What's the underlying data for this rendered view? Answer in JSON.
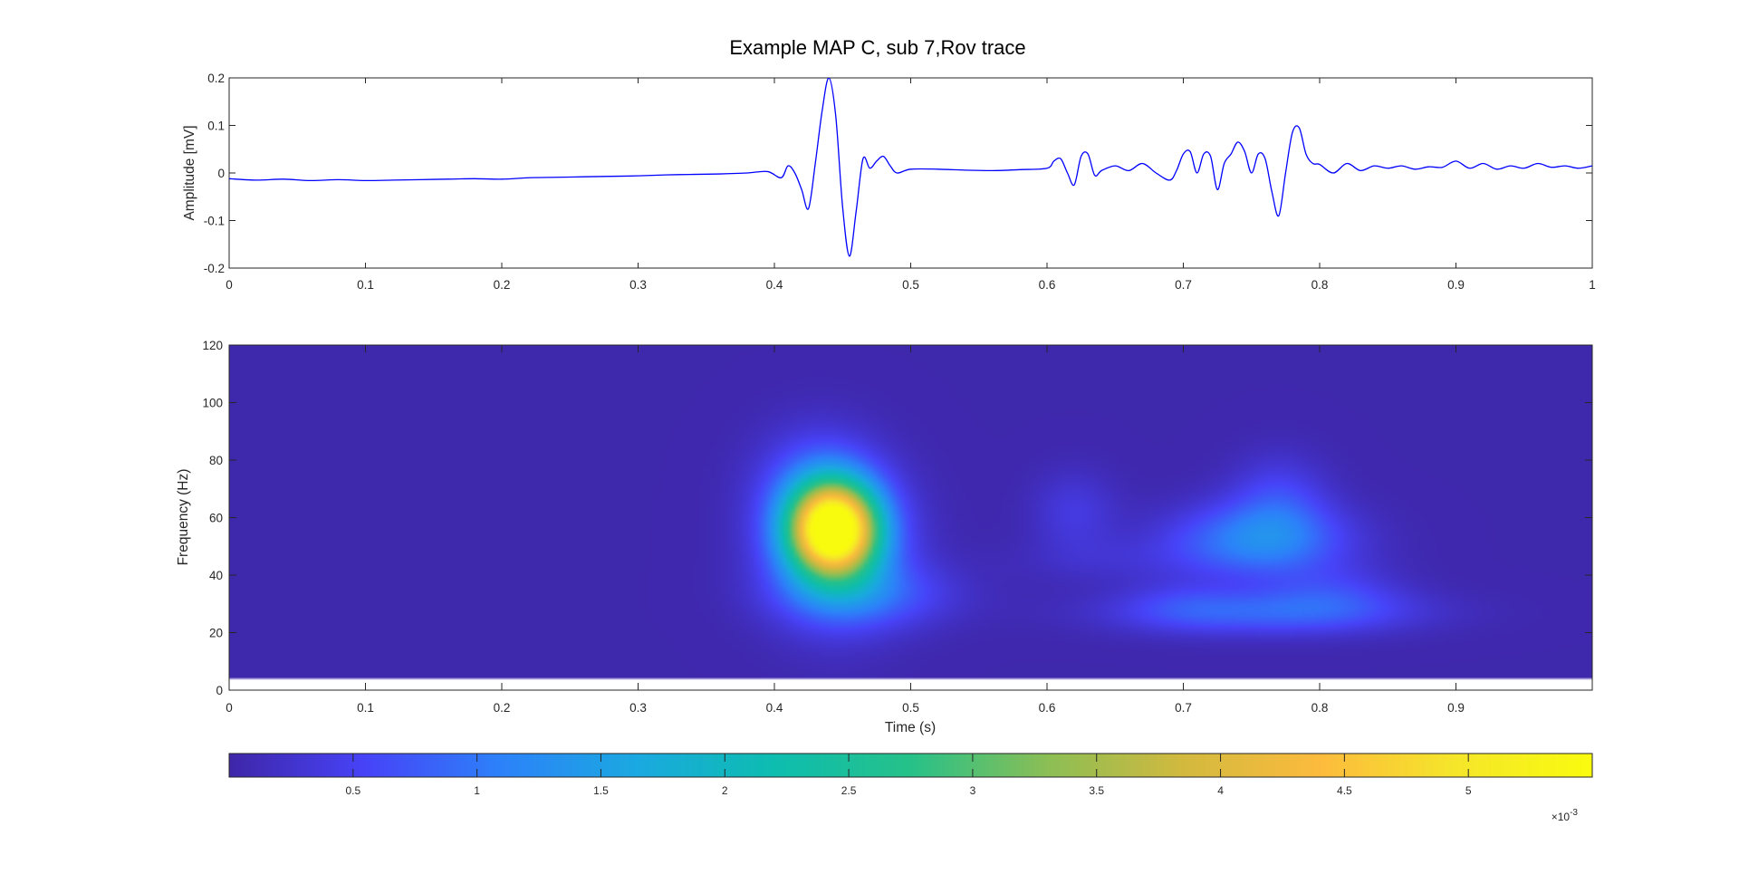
{
  "title": "Example MAP C, sub 7,Rov trace",
  "chart_data": [
    {
      "type": "line",
      "name": "trace",
      "ylabel": "Amplitude [mV]",
      "xlim": [
        0,
        1
      ],
      "ylim": [
        -0.2,
        0.2
      ],
      "xticks": [
        0,
        0.1,
        0.2,
        0.3,
        0.4,
        0.5,
        0.6,
        0.7,
        0.8,
        0.9,
        1
      ],
      "xtick_labels": [
        "0",
        "0.1",
        "0.2",
        "0.3",
        "0.4",
        "0.5",
        "0.6",
        "0.7",
        "0.8",
        "0.9",
        "1"
      ],
      "yticks": [
        -0.2,
        -0.1,
        0,
        0.1,
        0.2
      ],
      "ytick_labels": [
        "-0.2",
        "-0.1",
        "0",
        "0.1",
        "0.2"
      ],
      "line_color": "#0000ff",
      "series": [
        {
          "name": "Rov trace",
          "x": [
            0,
            0.02,
            0.04,
            0.06,
            0.08,
            0.1,
            0.12,
            0.14,
            0.16,
            0.18,
            0.2,
            0.22,
            0.24,
            0.26,
            0.28,
            0.3,
            0.32,
            0.34,
            0.36,
            0.38,
            0.395,
            0.405,
            0.41,
            0.415,
            0.42,
            0.425,
            0.43,
            0.435,
            0.44,
            0.445,
            0.45,
            0.455,
            0.46,
            0.465,
            0.47,
            0.475,
            0.48,
            0.485,
            0.49,
            0.5,
            0.52,
            0.54,
            0.56,
            0.58,
            0.6,
            0.605,
            0.61,
            0.615,
            0.62,
            0.625,
            0.63,
            0.635,
            0.64,
            0.65,
            0.66,
            0.67,
            0.68,
            0.69,
            0.695,
            0.7,
            0.705,
            0.71,
            0.715,
            0.72,
            0.725,
            0.73,
            0.735,
            0.74,
            0.745,
            0.75,
            0.755,
            0.76,
            0.765,
            0.77,
            0.775,
            0.78,
            0.785,
            0.79,
            0.795,
            0.8,
            0.81,
            0.82,
            0.83,
            0.84,
            0.85,
            0.86,
            0.87,
            0.88,
            0.89,
            0.9,
            0.91,
            0.92,
            0.93,
            0.94,
            0.95,
            0.96,
            0.97,
            0.98,
            0.99,
            1
          ],
          "y": [
            -0.012,
            -0.015,
            -0.013,
            -0.016,
            -0.014,
            -0.016,
            -0.015,
            -0.014,
            -0.013,
            -0.012,
            -0.013,
            -0.01,
            -0.009,
            -0.008,
            -0.007,
            -0.006,
            -0.004,
            -0.003,
            -0.002,
            0.0,
            0.003,
            -0.01,
            0.015,
            0.0,
            -0.035,
            -0.075,
            0.02,
            0.13,
            0.2,
            0.12,
            -0.07,
            -0.175,
            -0.08,
            0.03,
            0.01,
            0.025,
            0.035,
            0.015,
            0.0,
            0.008,
            0.008,
            0.006,
            0.005,
            0.007,
            0.01,
            0.025,
            0.03,
            0.0,
            -0.025,
            0.035,
            0.04,
            -0.005,
            0.005,
            0.015,
            0.005,
            0.02,
            0.0,
            -0.015,
            0.005,
            0.04,
            0.045,
            0.0,
            0.04,
            0.035,
            -0.035,
            0.02,
            0.04,
            0.065,
            0.045,
            0.0,
            0.04,
            0.03,
            -0.04,
            -0.09,
            0.0,
            0.085,
            0.095,
            0.04,
            0.02,
            0.018,
            0.0,
            0.02,
            0.005,
            0.015,
            0.01,
            0.015,
            0.008,
            0.013,
            0.012,
            0.025,
            0.01,
            0.02,
            0.008,
            0.015,
            0.01,
            0.02,
            0.012,
            0.015,
            0.01,
            0.015
          ]
        }
      ]
    },
    {
      "type": "heatmap",
      "name": "time-frequency power",
      "xlabel": "Time (s)",
      "ylabel": "Frequency (Hz)",
      "xlim": [
        0,
        1
      ],
      "ylim": [
        0,
        120
      ],
      "xticks": [
        0,
        0.1,
        0.2,
        0.3,
        0.4,
        0.5,
        0.6,
        0.7,
        0.8,
        0.9
      ],
      "xtick_labels": [
        "0",
        "0.1",
        "0.2",
        "0.3",
        "0.4",
        "0.5",
        "0.6",
        "0.7",
        "0.8",
        "0.9"
      ],
      "yticks": [
        0,
        20,
        40,
        60,
        80,
        100,
        120
      ],
      "ytick_labels": [
        "0",
        "20",
        "40",
        "60",
        "80",
        "100",
        "120"
      ],
      "data_frequency_range": [
        4,
        120
      ],
      "background_value": 3e-05,
      "blobs": [
        {
          "t": 0.443,
          "f": 56,
          "st": 0.022,
          "sf": 11,
          "amp": 0.0054
        },
        {
          "t": 0.445,
          "f": 50,
          "st": 0.035,
          "sf": 18,
          "amp": 0.0012
        },
        {
          "t": 0.47,
          "f": 33,
          "st": 0.045,
          "sf": 8,
          "amp": 0.0006
        },
        {
          "t": 0.43,
          "f": 72,
          "st": 0.03,
          "sf": 14,
          "amp": 0.0005
        },
        {
          "t": 0.62,
          "f": 62,
          "st": 0.022,
          "sf": 10,
          "amp": 0.00035
        },
        {
          "t": 0.65,
          "f": 45,
          "st": 0.05,
          "sf": 6,
          "amp": 0.00018
        },
        {
          "t": 0.755,
          "f": 52,
          "st": 0.045,
          "sf": 9,
          "amp": 0.0011
        },
        {
          "t": 0.77,
          "f": 66,
          "st": 0.025,
          "sf": 11,
          "amp": 0.0005
        },
        {
          "t": 0.76,
          "f": 27,
          "st": 0.075,
          "sf": 5.5,
          "amp": 0.00075
        },
        {
          "t": 0.81,
          "f": 34,
          "st": 0.035,
          "sf": 7,
          "amp": 0.0004
        },
        {
          "t": 0.7,
          "f": 30,
          "st": 0.03,
          "sf": 6,
          "amp": 0.00025
        }
      ],
      "colorbar": {
        "ticks": [
          0.0005,
          0.001,
          0.0015,
          0.002,
          0.0025,
          0.003,
          0.0035,
          0.004,
          0.0045,
          0.005
        ],
        "tick_labels": [
          "0.5",
          "1",
          "1.5",
          "2",
          "2.5",
          "3",
          "3.5",
          "4",
          "4.5",
          "5"
        ],
        "range": [
          0,
          0.0055
        ],
        "exponent_base": "×10",
        "exponent_power": "-3",
        "colormap": "parula",
        "colormap_stops": [
          "#3e26a8",
          "#4743f8",
          "#2c82f9",
          "#1aa9e0",
          "#0dbdaf",
          "#26c189",
          "#8bbe55",
          "#d2b93e",
          "#fcbb3d",
          "#f5e62a",
          "#f9fb0e"
        ]
      }
    }
  ]
}
